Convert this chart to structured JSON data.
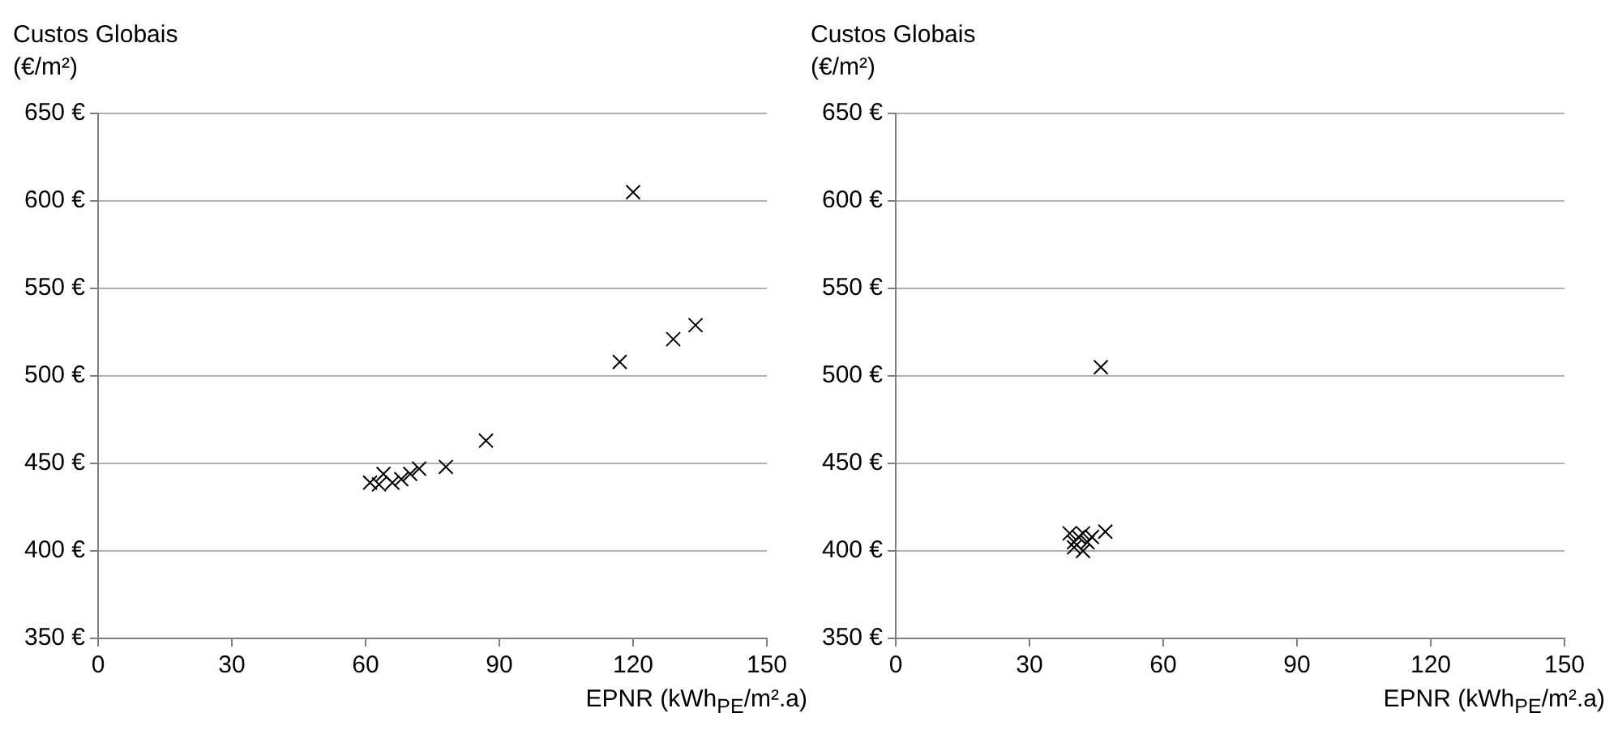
{
  "chart_data": [
    {
      "type": "scatter",
      "ylabel": "Custos Globais\n(€/m²)",
      "xlabel": "EPNR (kWh$_{PE}$/m².a)",
      "x": [
        61,
        63,
        64,
        66,
        68,
        70,
        72,
        78,
        87,
        117,
        120,
        129,
        134
      ],
      "values": [
        439,
        438,
        444,
        439,
        441,
        444,
        447,
        448,
        463,
        508,
        605,
        521,
        529
      ],
      "color": "#000000",
      "marker": "cross",
      "grid": "y",
      "xlim": [
        0,
        150
      ],
      "xticks": [
        0,
        30,
        60,
        90,
        120,
        150
      ],
      "ylim": [
        350,
        650
      ],
      "yticks": [
        {
          "value": 350,
          "label": "350 €"
        },
        {
          "value": 400,
          "label": "400 €"
        },
        {
          "value": 450,
          "label": "450 €"
        },
        {
          "value": 500,
          "label": "500 €"
        },
        {
          "value": 550,
          "label": "550 €"
        },
        {
          "value": 600,
          "label": "600 €"
        },
        {
          "value": 650,
          "label": "650 €"
        }
      ]
    },
    {
      "type": "scatter",
      "ylabel": "Custos Globais\n(€/m²)",
      "xlabel": "EPNR (kWh$_{PE}$/m².a)",
      "x": [
        39,
        40,
        40,
        41,
        42,
        42,
        43,
        44,
        47,
        46
      ],
      "values": [
        410,
        405,
        402,
        408,
        400,
        410,
        405,
        408,
        411,
        505
      ],
      "color": "#000000",
      "marker": "cross",
      "grid": "y",
      "xlim": [
        0,
        150
      ],
      "xticks": [
        0,
        30,
        60,
        90,
        120,
        150
      ],
      "ylim": [
        350,
        650
      ],
      "yticks": [
        {
          "value": 350,
          "label": "350 €"
        },
        {
          "value": 400,
          "label": "400 €"
        },
        {
          "value": 450,
          "label": "450 €"
        },
        {
          "value": 500,
          "label": "500 €"
        },
        {
          "value": 550,
          "label": "550 €"
        },
        {
          "value": 600,
          "label": "600 €"
        },
        {
          "value": 650,
          "label": "650 €"
        }
      ]
    }
  ]
}
